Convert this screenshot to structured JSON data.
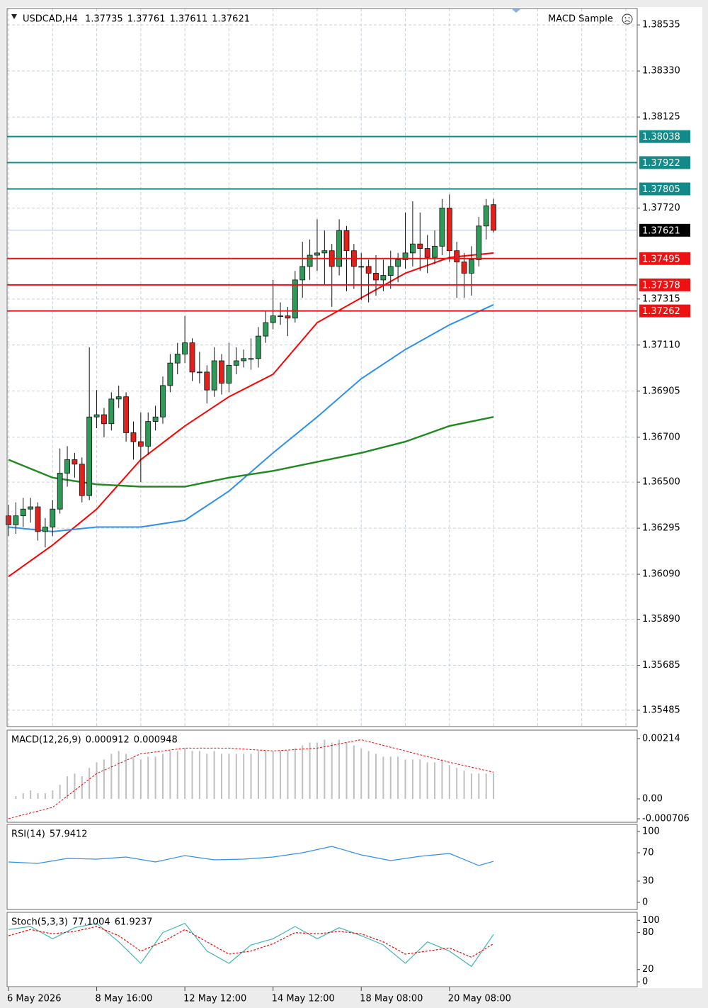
{
  "chart_data": [
    {
      "type": "candlestick",
      "title": "USDCAD,H4",
      "expert": "MACD Sample",
      "categories": [
        "6 May 2026",
        null,
        null,
        null,
        null,
        null,
        null,
        null,
        null,
        null,
        null,
        null,
        "8 May 16:00",
        null,
        null,
        null,
        null,
        null,
        null,
        null,
        null,
        null,
        null,
        null,
        "12 May 12:00",
        null,
        null,
        null,
        null,
        null,
        null,
        null,
        null,
        null,
        null,
        null,
        "14 May 12:00",
        null,
        null,
        null,
        null,
        null,
        null,
        null,
        null,
        null,
        null,
        null,
        "18 May 08:00",
        null,
        null,
        null,
        null,
        null,
        null,
        null,
        null,
        null,
        null,
        null,
        "20 May 08:00",
        null,
        null,
        null,
        null,
        null,
        null
      ],
      "candles": [
        [
          1.3635,
          1.364,
          1.3626,
          1.3631
        ],
        [
          1.3631,
          1.3641,
          1.3627,
          1.3635
        ],
        [
          1.3635,
          1.3643,
          1.363,
          1.3638
        ],
        [
          1.3638,
          1.3643,
          1.3632,
          1.3639
        ],
        [
          1.3639,
          1.3641,
          1.3624,
          1.3628
        ],
        [
          1.3628,
          1.3634,
          1.3621,
          1.363
        ],
        [
          1.363,
          1.3642,
          1.3626,
          1.3638
        ],
        [
          1.3638,
          1.3665,
          1.3636,
          1.3654
        ],
        [
          1.3654,
          1.3666,
          1.3648,
          1.366
        ],
        [
          1.366,
          1.3663,
          1.3652,
          1.3658
        ],
        [
          1.3658,
          1.3661,
          1.3641,
          1.3644
        ],
        [
          1.3644,
          1.371,
          1.3642,
          1.3679
        ],
        [
          1.3679,
          1.3691,
          1.3674,
          1.368
        ],
        [
          1.368,
          1.3683,
          1.367,
          1.3676
        ],
        [
          1.3676,
          1.369,
          1.3673,
          1.3687
        ],
        [
          1.3687,
          1.3693,
          1.3683,
          1.3688
        ],
        [
          1.3688,
          1.369,
          1.3668,
          1.3672
        ],
        [
          1.3672,
          1.3677,
          1.366,
          1.3668
        ],
        [
          1.3668,
          1.3681,
          1.365,
          1.3666
        ],
        [
          1.3666,
          1.3681,
          1.3662,
          1.3677
        ],
        [
          1.3677,
          1.3684,
          1.3673,
          1.3679
        ],
        [
          1.3679,
          1.3697,
          1.3676,
          1.3693
        ],
        [
          1.3693,
          1.3707,
          1.369,
          1.3703
        ],
        [
          1.3703,
          1.3712,
          1.3698,
          1.3707
        ],
        [
          1.3707,
          1.3724,
          1.3703,
          1.3712
        ],
        [
          1.3712,
          1.3714,
          1.3695,
          1.3699
        ],
        [
          1.3699,
          1.3708,
          1.3694,
          1.3699
        ],
        [
          1.3699,
          1.3702,
          1.3685,
          1.3691
        ],
        [
          1.3691,
          1.371,
          1.3688,
          1.3704
        ],
        [
          1.3704,
          1.3707,
          1.3689,
          1.3694
        ],
        [
          1.3694,
          1.3712,
          1.369,
          1.3702
        ],
        [
          1.3702,
          1.371,
          1.3698,
          1.3704
        ],
        [
          1.3704,
          1.3709,
          1.3701,
          1.3705
        ],
        [
          1.3705,
          1.3714,
          1.37,
          1.3705
        ],
        [
          1.3705,
          1.3719,
          1.3701,
          1.3715
        ],
        [
          1.3715,
          1.3726,
          1.3712,
          1.3721
        ],
        [
          1.3721,
          1.374,
          1.3718,
          1.3724
        ],
        [
          1.3724,
          1.373,
          1.372,
          1.3724
        ],
        [
          1.3724,
          1.3728,
          1.3715,
          1.3723
        ],
        [
          1.3723,
          1.3744,
          1.3721,
          1.374
        ],
        [
          1.374,
          1.3757,
          1.3732,
          1.3746
        ],
        [
          1.3746,
          1.3758,
          1.374,
          1.3751
        ],
        [
          1.3751,
          1.3767,
          1.3744,
          1.3752
        ],
        [
          1.3752,
          1.3762,
          1.3738,
          1.3753
        ],
        [
          1.3753,
          1.3756,
          1.3728,
          1.3746
        ],
        [
          1.3746,
          1.3767,
          1.3742,
          1.3762
        ],
        [
          1.3762,
          1.3764,
          1.3735,
          1.3753
        ],
        [
          1.3753,
          1.3756,
          1.3736,
          1.3746
        ],
        [
          1.3746,
          1.3752,
          1.3731,
          1.3746
        ],
        [
          1.3746,
          1.3749,
          1.373,
          1.3743
        ],
        [
          1.3743,
          1.3751,
          1.3733,
          1.374
        ],
        [
          1.374,
          1.3749,
          1.3735,
          1.3742
        ],
        [
          1.3742,
          1.3753,
          1.3736,
          1.3746
        ],
        [
          1.3746,
          1.3752,
          1.3739,
          1.3749
        ],
        [
          1.3749,
          1.377,
          1.3745,
          1.3752
        ],
        [
          1.3752,
          1.3775,
          1.3746,
          1.3756
        ],
        [
          1.3756,
          1.377,
          1.3744,
          1.3754
        ],
        [
          1.3754,
          1.376,
          1.3743,
          1.375
        ],
        [
          1.375,
          1.3762,
          1.3747,
          1.3755
        ],
        [
          1.3755,
          1.3776,
          1.3751,
          1.3772
        ],
        [
          1.3772,
          1.3778,
          1.3748,
          1.3753
        ],
        [
          1.3753,
          1.3757,
          1.3732,
          1.3748
        ],
        [
          1.3748,
          1.3752,
          1.3732,
          1.3743
        ],
        [
          1.3743,
          1.3755,
          1.3733,
          1.3749
        ],
        [
          1.3749,
          1.3768,
          1.3746,
          1.3764
        ],
        [
          1.3764,
          1.3776,
          1.3758,
          1.3773
        ],
        [
          1.37735,
          1.37761,
          1.37611,
          1.37621
        ]
      ],
      "up_color": "#2f9a58",
      "down_color": "#e3211c",
      "moving_averages": [
        {
          "color": "#ff0000",
          "x": [
            0,
            6,
            12,
            18,
            24,
            30,
            36,
            42,
            48,
            54,
            60,
            66
          ],
          "values": [
            1.3608,
            1.3622,
            1.3638,
            1.366,
            1.3675,
            1.3688,
            1.3698,
            1.3721,
            1.3732,
            1.3743,
            1.375,
            1.3752
          ]
        },
        {
          "color": "#2f8fef",
          "x": [
            0,
            6,
            12,
            18,
            24,
            30,
            36,
            42,
            48,
            54,
            60,
            66
          ],
          "values": [
            1.363,
            1.3628,
            1.363,
            1.363,
            1.3633,
            1.3646,
            1.3663,
            1.3679,
            1.3696,
            1.3709,
            1.372,
            1.3729
          ]
        },
        {
          "color": "#1f8a1f",
          "x": [
            0,
            6,
            12,
            18,
            24,
            30,
            36,
            42,
            48,
            54,
            60,
            66
          ],
          "values": [
            1.366,
            1.3652,
            1.3649,
            1.3648,
            1.3648,
            1.3652,
            1.3655,
            1.3659,
            1.3663,
            1.3668,
            1.3675,
            1.3679
          ]
        }
      ],
      "levels": [
        {
          "value": 1.38038,
          "color": "#138a8a"
        },
        {
          "value": 1.37922,
          "color": "#138a8a"
        },
        {
          "value": 1.37805,
          "color": "#138a8a"
        },
        {
          "value": 1.37495,
          "color": "#ee1111"
        },
        {
          "value": 1.37378,
          "color": "#ee1111"
        },
        {
          "value": 1.37262,
          "color": "#ee1111"
        }
      ],
      "ylim": [
        1.35412,
        1.38608
      ],
      "yticks": [
        1.38535,
        {
          "value": 1.3833,
          "label": "1.38330"
        },
        1.38125,
        {
          "value": 1.3772,
          "label": "1.37720"
        },
        1.37315,
        {
          "value": 1.3711,
          "label": "1.37110"
        },
        1.36905,
        {
          "value": 1.367,
          "label": "1.36700"
        },
        {
          "value": 1.365,
          "label": "1.36500"
        },
        1.36295,
        {
          "value": 1.3609,
          "label": "1.36090"
        },
        {
          "value": 1.3589,
          "label": "1.35890"
        },
        1.35685,
        1.35485
      ],
      "grid": true
    },
    {
      "type": "macd",
      "title": "MACD(12,26,9)",
      "color": "#c0c0c0",
      "values": [
        0.0,
        0.0001,
        0.0002,
        0.0003,
        0.0002,
        0.0002,
        0.0003,
        0.0005,
        0.0008,
        0.0009,
        0.0008,
        0.0011,
        0.0013,
        0.0014,
        0.0016,
        0.0017,
        0.0016,
        0.0015,
        0.0014,
        0.0015,
        0.0015,
        0.0016,
        0.0017,
        0.0017,
        0.0018,
        0.0017,
        0.0017,
        0.0016,
        0.0017,
        0.0016,
        0.0016,
        0.0016,
        0.0016,
        0.0016,
        0.0017,
        0.0017,
        0.0017,
        0.0017,
        0.0017,
        0.0018,
        0.0019,
        0.002,
        0.002,
        0.0021,
        0.002,
        0.0021,
        0.002,
        0.0019,
        0.0018,
        0.0017,
        0.0016,
        0.0015,
        0.0015,
        0.0015,
        0.0014,
        0.0014,
        0.0014,
        0.0013,
        0.0013,
        0.0014,
        0.0012,
        0.0011,
        0.001,
        0.0009,
        0.0009,
        0.0009,
        0.000912
      ],
      "signal": {
        "color": "#ff0000",
        "x": [
          0,
          6,
          12,
          18,
          24,
          30,
          36,
          42,
          48,
          54,
          60,
          66
        ],
        "values": [
          -0.0007,
          -0.0003,
          0.0009,
          0.0016,
          0.0018,
          0.0018,
          0.0017,
          0.0018,
          0.0021,
          0.0017,
          0.0013,
          0.000948
        ]
      },
      "ylim": [
        -0.00083,
        0.00244
      ],
      "yticks": [
        0.00214,
        {
          "value": 0,
          "label": "0.00"
        },
        -0.000706
      ]
    },
    {
      "type": "line",
      "title": "RSI(14)",
      "x": [
        0,
        4,
        8,
        12,
        16,
        20,
        24,
        28,
        32,
        36,
        40,
        44,
        48,
        52,
        56,
        60,
        64,
        66
      ],
      "series": [
        {
          "color": "#2f8fef",
          "values": [
            57,
            55,
            62,
            61,
            64,
            57,
            66,
            60,
            61,
            64,
            70,
            79,
            67,
            59,
            65,
            69,
            52,
            57.9412
          ]
        }
      ],
      "ylim": [
        -10,
        110
      ],
      "yticks": [
        100,
        70,
        30,
        0
      ]
    },
    {
      "type": "line",
      "title": "Stoch(5,3,3)",
      "x": [
        0,
        3,
        6,
        9,
        12,
        15,
        18,
        21,
        24,
        27,
        30,
        33,
        36,
        39,
        42,
        45,
        48,
        51,
        54,
        57,
        60,
        63,
        66
      ],
      "series": [
        {
          "color": "#3fb8b0",
          "values": [
            85,
            90,
            70,
            88,
            95,
            65,
            30,
            80,
            95,
            50,
            30,
            60,
            70,
            90,
            70,
            88,
            75,
            60,
            30,
            65,
            50,
            25,
            77.1004
          ]
        },
        {
          "color": "#ff0000",
          "dashed": true,
          "values": [
            75,
            85,
            78,
            82,
            90,
            75,
            50,
            65,
            85,
            65,
            45,
            50,
            62,
            80,
            78,
            82,
            78,
            65,
            45,
            50,
            55,
            40,
            61.9237
          ]
        }
      ],
      "ylim": [
        -8,
        113
      ],
      "yticks": [
        100,
        80,
        20,
        0
      ]
    }
  ]
}
